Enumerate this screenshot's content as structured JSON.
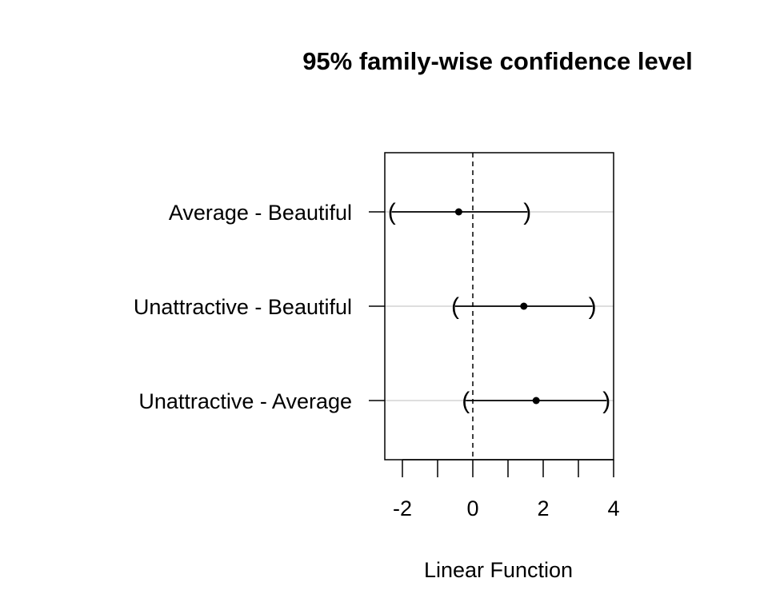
{
  "chart_data": {
    "type": "interval",
    "title": "95% family-wise confidence level",
    "xlabel": "Linear Function",
    "ylabel": "",
    "xlim": [
      -2.5,
      4.0
    ],
    "x_major_ticks": [
      -2,
      0,
      2,
      4
    ],
    "x_minor_ticks": [
      -1,
      1,
      3
    ],
    "reference_line": 0,
    "grid": "horizontal lines at each comparison",
    "comparisons": [
      {
        "label": "Average - Beautiful",
        "estimate": -0.4,
        "lower": -2.3,
        "upper": 1.55
      },
      {
        "label": "Unattractive - Beautiful",
        "estimate": 1.45,
        "lower": -0.5,
        "upper": 3.4
      },
      {
        "label": "Unattractive - Average",
        "estimate": 1.8,
        "lower": -0.2,
        "upper": 3.8
      }
    ]
  },
  "colors": {
    "axis": "#000000",
    "grid": "#d3d3d3",
    "interval": "#000000",
    "point": "#000000"
  }
}
